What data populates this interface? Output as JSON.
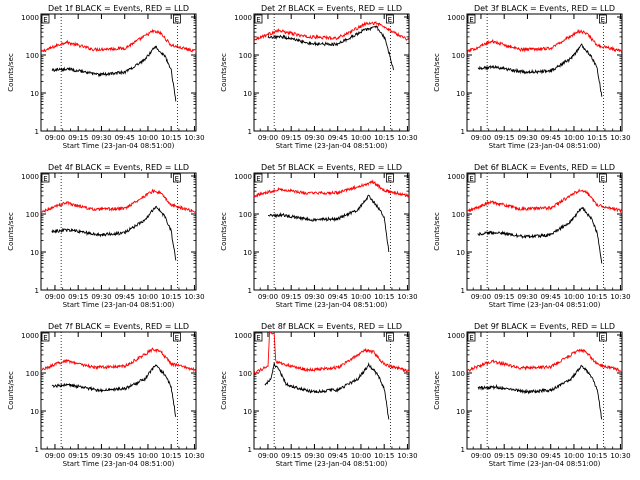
{
  "chart_data": [
    {
      "type": "line",
      "title": "Det 1f BLACK = Events, RED = LLD",
      "xlabel": "Start Time (23-Jan-04 08:51:00)",
      "ylabel": "Counts/sec",
      "x_ticks": [
        "09:00",
        "09:15",
        "09:30",
        "09:45",
        "10:00",
        "10:15",
        "10:30"
      ],
      "y_ticks": [
        "1",
        "10",
        "100",
        "1000"
      ],
      "y_scale": "log",
      "ylim": [
        1,
        1200
      ],
      "xlim": [
        "08:51",
        "10:31"
      ],
      "marker_label": "E",
      "vertical_markers": [
        "09:04",
        "10:19"
      ],
      "series": [
        {
          "color": "#ff0000",
          "x": [
            "08:51",
            "09:07",
            "09:25",
            "09:45",
            "10:03",
            "10:08",
            "10:15",
            "10:31"
          ],
          "y": [
            120,
            220,
            140,
            150,
            420,
            380,
            180,
            125
          ]
        },
        {
          "color": "#000000",
          "x": [
            "08:58",
            "09:10",
            "09:28",
            "09:45",
            "09:58",
            "10:05",
            "10:11",
            "10:15",
            "10:18"
          ],
          "y": [
            40,
            42,
            30,
            35,
            75,
            170,
            90,
            40,
            6
          ]
        }
      ]
    },
    {
      "type": "line",
      "title": "Det 2f BLACK = Events, RED = LLD",
      "xlabel": "Start Time (23-Jan-04 08:51:00)",
      "ylabel": "Counts/sec",
      "x_ticks": [
        "09:00",
        "09:15",
        "09:30",
        "09:45",
        "10:00",
        "10:15",
        "10:30"
      ],
      "y_ticks": [
        "1",
        "10",
        "100",
        "1000"
      ],
      "y_scale": "log",
      "ylim": [
        1,
        1200
      ],
      "xlim": [
        "08:51",
        "10:31"
      ],
      "marker_label": "E",
      "vertical_markers": [
        "09:04",
        "10:19"
      ],
      "series": [
        {
          "color": "#ff0000",
          "x": [
            "08:51",
            "09:07",
            "09:25",
            "09:45",
            "10:03",
            "10:10",
            "10:20",
            "10:31"
          ],
          "y": [
            260,
            440,
            300,
            280,
            650,
            700,
            420,
            250
          ]
        },
        {
          "color": "#000000",
          "x": [
            "09:00",
            "09:10",
            "09:28",
            "09:45",
            "10:02",
            "10:10",
            "10:16",
            "10:21"
          ],
          "y": [
            280,
            300,
            200,
            190,
            450,
            550,
            250,
            40
          ]
        }
      ]
    },
    {
      "type": "line",
      "title": "Det 3f BLACK = Events, RED = LLD",
      "xlabel": "Start Time (23-Jan-04 08:51:00)",
      "ylabel": "Counts/sec",
      "x_ticks": [
        "09:00",
        "09:15",
        "09:30",
        "09:45",
        "10:00",
        "10:15",
        "10:30"
      ],
      "y_ticks": [
        "1",
        "10",
        "100",
        "1000"
      ],
      "y_scale": "log",
      "ylim": [
        1,
        1200
      ],
      "xlim": [
        "08:51",
        "10:31"
      ],
      "marker_label": "E",
      "vertical_markers": [
        "09:04",
        "10:19"
      ],
      "series": [
        {
          "color": "#ff0000",
          "x": [
            "08:51",
            "09:07",
            "09:25",
            "09:45",
            "10:03",
            "10:08",
            "10:15",
            "10:31"
          ],
          "y": [
            120,
            230,
            140,
            150,
            420,
            380,
            180,
            125
          ]
        },
        {
          "color": "#000000",
          "x": [
            "08:58",
            "09:10",
            "09:28",
            "09:45",
            "09:58",
            "10:05",
            "10:11",
            "10:15",
            "10:18"
          ],
          "y": [
            45,
            48,
            35,
            38,
            80,
            180,
            95,
            45,
            8
          ]
        }
      ]
    },
    {
      "type": "line",
      "title": "Det 4f BLACK = Events, RED = LLD",
      "xlabel": "Start Time (23-Jan-04 08:51:00)",
      "ylabel": "Counts/sec",
      "x_ticks": [
        "09:00",
        "09:15",
        "09:30",
        "09:45",
        "10:00",
        "10:15",
        "10:30"
      ],
      "y_ticks": [
        "1",
        "10",
        "100",
        "1000"
      ],
      "y_scale": "log",
      "ylim": [
        1,
        1200
      ],
      "xlim": [
        "08:51",
        "10:31"
      ],
      "marker_label": "E",
      "vertical_markers": [
        "09:04",
        "10:19"
      ],
      "series": [
        {
          "color": "#ff0000",
          "x": [
            "08:51",
            "09:07",
            "09:25",
            "09:45",
            "10:03",
            "10:08",
            "10:15",
            "10:31"
          ],
          "y": [
            110,
            200,
            130,
            140,
            400,
            360,
            170,
            115
          ]
        },
        {
          "color": "#000000",
          "x": [
            "08:58",
            "09:10",
            "09:28",
            "09:45",
            "09:58",
            "10:05",
            "10:11",
            "10:15",
            "10:18"
          ],
          "y": [
            35,
            38,
            28,
            32,
            70,
            160,
            85,
            35,
            6
          ]
        }
      ]
    },
    {
      "type": "line",
      "title": "Det 5f BLACK = Events, RED = LLD",
      "xlabel": "Start Time (23-Jan-04 08:51:00)",
      "ylabel": "Counts/sec",
      "x_ticks": [
        "09:00",
        "09:15",
        "09:30",
        "09:45",
        "10:00",
        "10:15",
        "10:30"
      ],
      "y_ticks": [
        "1",
        "10",
        "100",
        "1000"
      ],
      "y_scale": "log",
      "ylim": [
        1,
        1200
      ],
      "xlim": [
        "08:51",
        "10:31"
      ],
      "marker_label": "E",
      "vertical_markers": [
        "09:04",
        "10:19"
      ],
      "series": [
        {
          "color": "#ff0000",
          "x": [
            "08:51",
            "09:07",
            "09:25",
            "09:45",
            "10:03",
            "10:08",
            "10:15",
            "10:31"
          ],
          "y": [
            300,
            450,
            350,
            360,
            600,
            700,
            420,
            300
          ]
        },
        {
          "color": "#000000",
          "x": [
            "09:00",
            "09:10",
            "09:28",
            "09:45",
            "09:58",
            "10:05",
            "10:11",
            "10:15",
            "10:18"
          ],
          "y": [
            90,
            95,
            70,
            75,
            130,
            300,
            150,
            80,
            10
          ]
        }
      ]
    },
    {
      "type": "line",
      "title": "Det 6f BLACK = Events, RED = LLD",
      "xlabel": "Start Time (23-Jan-04 08:51:00)",
      "ylabel": "Counts/sec",
      "x_ticks": [
        "09:00",
        "09:15",
        "09:30",
        "09:45",
        "10:00",
        "10:15",
        "10:30"
      ],
      "y_ticks": [
        "1",
        "10",
        "100",
        "1000"
      ],
      "y_scale": "log",
      "ylim": [
        1,
        1200
      ],
      "xlim": [
        "08:51",
        "10:31"
      ],
      "marker_label": "E",
      "vertical_markers": [
        "09:04",
        "10:19"
      ],
      "series": [
        {
          "color": "#ff0000",
          "x": [
            "08:51",
            "09:07",
            "09:25",
            "09:45",
            "10:03",
            "10:08",
            "10:15",
            "10:31"
          ],
          "y": [
            115,
            210,
            135,
            145,
            410,
            370,
            175,
            120
          ]
        },
        {
          "color": "#000000",
          "x": [
            "08:58",
            "09:10",
            "09:28",
            "09:45",
            "09:58",
            "10:05",
            "10:11",
            "10:15",
            "10:18"
          ],
          "y": [
            30,
            33,
            25,
            28,
            65,
            150,
            80,
            32,
            5
          ]
        }
      ]
    },
    {
      "type": "line",
      "title": "Det 7f BLACK = Events, RED = LLD",
      "xlabel": "Start Time (23-Jan-04 08:51:00)",
      "ylabel": "Counts/sec",
      "x_ticks": [
        "09:00",
        "09:15",
        "09:30",
        "09:45",
        "10:00",
        "10:15",
        "10:30"
      ],
      "y_ticks": [
        "1",
        "10",
        "100",
        "1000"
      ],
      "y_scale": "log",
      "ylim": [
        1,
        1200
      ],
      "xlim": [
        "08:51",
        "10:31"
      ],
      "marker_label": "E",
      "vertical_markers": [
        "09:04",
        "10:19"
      ],
      "series": [
        {
          "color": "#ff0000",
          "x": [
            "08:51",
            "09:07",
            "09:25",
            "09:45",
            "10:03",
            "10:08",
            "10:15",
            "10:31"
          ],
          "y": [
            120,
            215,
            140,
            150,
            410,
            370,
            175,
            120
          ]
        },
        {
          "color": "#000000",
          "x": [
            "08:58",
            "09:10",
            "09:28",
            "09:45",
            "09:58",
            "10:05",
            "10:11",
            "10:15",
            "10:18"
          ],
          "y": [
            45,
            48,
            35,
            38,
            70,
            160,
            90,
            42,
            7
          ]
        }
      ]
    },
    {
      "type": "line",
      "title": "Det 8f BLACK = Events, RED = LLD",
      "xlabel": "Start Time (23-Jan-04 08:51:00)",
      "ylabel": "Counts/sec",
      "x_ticks": [
        "09:00",
        "09:15",
        "09:30",
        "09:45",
        "10:00",
        "10:15",
        "10:30"
      ],
      "y_ticks": [
        "1",
        "10",
        "100",
        "1000"
      ],
      "y_scale": "log",
      "ylim": [
        1,
        1200
      ],
      "xlim": [
        "08:51",
        "10:31"
      ],
      "marker_label": "E",
      "vertical_markers": [
        "09:04",
        "10:19"
      ],
      "series": [
        {
          "color": "#ff0000",
          "x": [
            "08:51",
            "09:00",
            "09:01",
            "09:03",
            "09:04",
            "09:05",
            "09:08",
            "09:25",
            "09:45",
            "10:03",
            "10:08",
            "10:15",
            "10:31"
          ],
          "y": [
            100,
            150,
            1100,
            1100,
            1100,
            200,
            180,
            120,
            140,
            400,
            360,
            170,
            110
          ]
        },
        {
          "color": "#000000",
          "x": [
            "08:58",
            "09:02",
            "09:04",
            "09:07",
            "09:12",
            "09:28",
            "09:45",
            "09:58",
            "10:05",
            "10:11",
            "10:15",
            "10:18"
          ],
          "y": [
            50,
            70,
            170,
            120,
            50,
            32,
            36,
            70,
            160,
            90,
            40,
            6
          ]
        }
      ]
    },
    {
      "type": "line",
      "title": "Det 9f BLACK = Events, RED = LLD",
      "xlabel": "Start Time (23-Jan-04 08:51:00)",
      "ylabel": "Counts/sec",
      "x_ticks": [
        "09:00",
        "09:15",
        "09:30",
        "09:45",
        "10:00",
        "10:15",
        "10:30"
      ],
      "y_ticks": [
        "1",
        "10",
        "100",
        "1000"
      ],
      "y_scale": "log",
      "ylim": [
        1,
        1200
      ],
      "xlim": [
        "08:51",
        "10:31"
      ],
      "marker_label": "E",
      "vertical_markers": [
        "09:04",
        "10:19"
      ],
      "series": [
        {
          "color": "#ff0000",
          "x": [
            "08:51",
            "09:07",
            "09:25",
            "09:45",
            "10:03",
            "10:08",
            "10:15",
            "10:31"
          ],
          "y": [
            115,
            205,
            135,
            145,
            400,
            360,
            170,
            115
          ]
        },
        {
          "color": "#000000",
          "x": [
            "08:58",
            "09:10",
            "09:28",
            "09:45",
            "09:58",
            "10:05",
            "10:11",
            "10:15",
            "10:18"
          ],
          "y": [
            40,
            43,
            32,
            35,
            68,
            155,
            85,
            38,
            6
          ]
        }
      ]
    }
  ]
}
